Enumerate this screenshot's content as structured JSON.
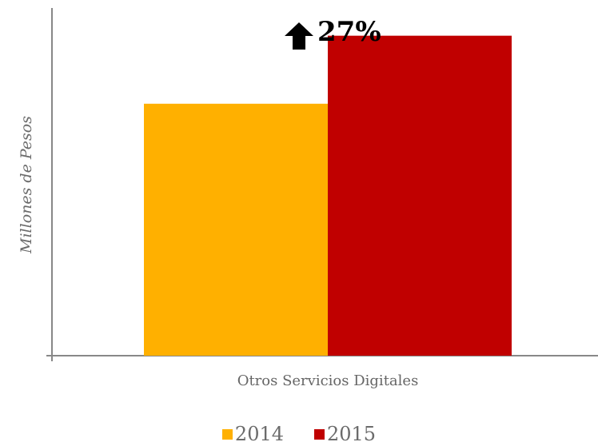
{
  "chart_data": {
    "type": "bar",
    "categories": [
      "Otros Servicios Digitales"
    ],
    "series": [
      {
        "name": "2014",
        "values": [
          100
        ],
        "color": "#FFB000"
      },
      {
        "name": "2015",
        "values": [
          127
        ],
        "color": "#C00000"
      }
    ],
    "title": "",
    "xlabel": "",
    "ylabel": "Millones de Pesos",
    "ylim": [
      0,
      138
    ],
    "grid": false,
    "legend": "bottom",
    "annotation": {
      "text": "27%",
      "icon": "arrow-up-icon"
    }
  }
}
